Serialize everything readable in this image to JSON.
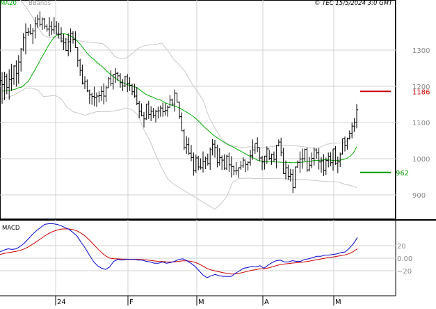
{
  "header": {
    "ma_label": "MA20",
    "bb_label": "BBands",
    "copyright": "© TEC 15/5/2024 3:0 GMT"
  },
  "macd_panel": {
    "label": "MACD"
  },
  "chart_data": {
    "type": "ohlc",
    "series": [
      {
        "name": "MA20",
        "color": "#00aa00"
      },
      {
        "name": "BBands",
        "color": "#cccccc"
      }
    ],
    "price_axis": {
      "ticks": [
        1300,
        1200,
        1100,
        1000,
        900
      ],
      "range": [
        860,
        1390
      ]
    },
    "macd_axis": {
      "ticks": [
        20,
        0,
        -20
      ],
      "range": [
        -48,
        55
      ]
    },
    "time_axis": {
      "labels": [
        "24",
        "F",
        "M",
        "A",
        "M"
      ]
    },
    "reference_levels": [
      {
        "value": 1186,
        "label": "1186",
        "color": "#cc0000"
      },
      {
        "value": 962,
        "label": "962",
        "color": "#009900"
      }
    ],
    "ohlc": [
      [
        1216,
        1239,
        1152,
        1205
      ],
      [
        1205,
        1240,
        1162,
        1228
      ],
      [
        1228,
        1235,
        1178,
        1197
      ],
      [
        1197,
        1247,
        1163,
        1219
      ],
      [
        1219,
        1262,
        1187,
        1222
      ],
      [
        1222,
        1259,
        1204,
        1256
      ],
      [
        1256,
        1272,
        1199,
        1236
      ],
      [
        1236,
        1286,
        1207,
        1267
      ],
      [
        1267,
        1306,
        1241,
        1303
      ],
      [
        1303,
        1347,
        1297,
        1334
      ],
      [
        1334,
        1374,
        1288,
        1349
      ],
      [
        1349,
        1362,
        1339,
        1350
      ],
      [
        1350,
        1372,
        1343,
        1345
      ],
      [
        1345,
        1361,
        1317,
        1353
      ],
      [
        1353,
        1392,
        1332,
        1373
      ],
      [
        1373,
        1398,
        1362,
        1386
      ],
      [
        1386,
        1407,
        1364,
        1371
      ],
      [
        1371,
        1390,
        1356,
        1386
      ],
      [
        1386,
        1389,
        1358,
        1366
      ],
      [
        1366,
        1371,
        1351,
        1358
      ],
      [
        1358,
        1391,
        1338,
        1366
      ],
      [
        1366,
        1380,
        1342,
        1356
      ],
      [
        1356,
        1391,
        1345,
        1366
      ],
      [
        1366,
        1380,
        1343,
        1344
      ],
      [
        1344,
        1375,
        1332,
        1344
      ],
      [
        1344,
        1363,
        1321,
        1325
      ],
      [
        1325,
        1345,
        1300,
        1320
      ],
      [
        1320,
        1334,
        1297,
        1299
      ],
      [
        1299,
        1346,
        1283,
        1323
      ],
      [
        1323,
        1360,
        1294,
        1346
      ],
      [
        1346,
        1353,
        1318,
        1330
      ],
      [
        1330,
        1352,
        1306,
        1307
      ],
      [
        1307,
        1308,
        1254,
        1272
      ],
      [
        1272,
        1276,
        1229,
        1244
      ],
      [
        1244,
        1260,
        1205,
        1209
      ],
      [
        1209,
        1228,
        1192,
        1214
      ],
      [
        1214,
        1219,
        1184,
        1187
      ],
      [
        1187,
        1191,
        1151,
        1177
      ],
      [
        1177,
        1182,
        1149,
        1172
      ],
      [
        1172,
        1199,
        1145,
        1169
      ],
      [
        1169,
        1183,
        1143,
        1173
      ],
      [
        1173,
        1186,
        1155,
        1174
      ],
      [
        1174,
        1200,
        1160,
        1186
      ],
      [
        1186,
        1208,
        1150,
        1173
      ],
      [
        1173,
        1202,
        1157,
        1196
      ],
      [
        1196,
        1226,
        1195,
        1221
      ],
      [
        1221,
        1244,
        1201,
        1208
      ],
      [
        1208,
        1234,
        1191,
        1232
      ],
      [
        1232,
        1250,
        1209,
        1236
      ],
      [
        1236,
        1240,
        1215,
        1229
      ],
      [
        1229,
        1236,
        1196,
        1210
      ],
      [
        1210,
        1220,
        1187,
        1201
      ],
      [
        1201,
        1229,
        1198,
        1226
      ],
      [
        1226,
        1234,
        1184,
        1208
      ],
      [
        1208,
        1225,
        1187,
        1203
      ],
      [
        1203,
        1207,
        1175,
        1185
      ],
      [
        1185,
        1207,
        1168,
        1173
      ],
      [
        1173,
        1198,
        1148,
        1153
      ],
      [
        1153,
        1160,
        1112,
        1131
      ],
      [
        1131,
        1153,
        1117,
        1119
      ],
      [
        1119,
        1129,
        1086,
        1110
      ],
      [
        1110,
        1152,
        1107,
        1151
      ],
      [
        1151,
        1160,
        1110,
        1122
      ],
      [
        1122,
        1145,
        1104,
        1131
      ],
      [
        1131,
        1140,
        1112,
        1119
      ],
      [
        1119,
        1135,
        1100,
        1131
      ],
      [
        1131,
        1144,
        1111,
        1132
      ],
      [
        1132,
        1147,
        1116,
        1140
      ],
      [
        1140,
        1155,
        1116,
        1130
      ],
      [
        1130,
        1153,
        1119,
        1133
      ],
      [
        1133,
        1147,
        1116,
        1142
      ],
      [
        1142,
        1176,
        1142,
        1162
      ],
      [
        1162,
        1166,
        1146,
        1151
      ],
      [
        1151,
        1191,
        1130,
        1181
      ],
      [
        1181,
        1181,
        1155,
        1156
      ],
      [
        1156,
        1158,
        1110,
        1116
      ],
      [
        1116,
        1128,
        1077,
        1077
      ],
      [
        1077,
        1082,
        1024,
        1031
      ],
      [
        1031,
        1062,
        1013,
        1039
      ],
      [
        1039,
        1058,
        1010,
        1015
      ],
      [
        1015,
        1038,
        993,
        1003
      ],
      [
        1003,
        1017,
        953,
        968
      ],
      [
        968,
        1011,
        961,
        1002
      ],
      [
        1002,
        1008,
        968,
        977
      ],
      [
        977,
        1001,
        970,
        975
      ],
      [
        975,
        1020,
        962,
        992
      ],
      [
        992,
        1006,
        971,
        1000
      ],
      [
        1000,
        1014,
        981,
        987
      ],
      [
        987,
        1031,
        969,
        1025
      ],
      [
        1025,
        1054,
        1009,
        1040
      ],
      [
        1040,
        1052,
        1003,
        1031
      ],
      [
        1031,
        1039,
        976,
        989
      ],
      [
        989,
        1029,
        981,
        1003
      ],
      [
        1003,
        1009,
        969,
        996
      ],
      [
        996,
        1012,
        969,
        974
      ],
      [
        974,
        1011,
        969,
        1007
      ],
      [
        1007,
        1017,
        963,
        983
      ],
      [
        983,
        1007,
        948,
        978
      ],
      [
        978,
        981,
        954,
        966
      ],
      [
        966,
        991,
        955,
        967
      ],
      [
        967,
        976,
        947,
        975
      ],
      [
        975,
        994,
        969,
        980
      ],
      [
        980,
        1004,
        975,
        996
      ],
      [
        996,
        993,
        963,
        984
      ],
      [
        984,
        993,
        967,
        990
      ],
      [
        990,
        1024,
        981,
        1008
      ],
      [
        1008,
        1053,
        997,
        1024
      ],
      [
        1024,
        1042,
        1013,
        1042
      ],
      [
        1042,
        1059,
        1018,
        1031
      ],
      [
        1031,
        1030,
        993,
        1002
      ],
      [
        1002,
        1008,
        968,
        991
      ],
      [
        991,
        1008,
        970,
        1007
      ],
      [
        1007,
        1034,
        986,
        1027
      ],
      [
        1027,
        1024,
        996,
        1001
      ],
      [
        1001,
        1014,
        983,
        1012
      ],
      [
        1012,
        1020,
        992,
        998
      ],
      [
        998,
        1038,
        973,
        1037
      ],
      [
        1037,
        1053,
        1034,
        1046
      ],
      [
        1046,
        1058,
        1007,
        1018
      ],
      [
        1018,
        1030,
        958,
        959
      ],
      [
        959,
        995,
        943,
        975
      ],
      [
        975,
        983,
        941,
        951
      ],
      [
        951,
        972,
        937,
        957
      ],
      [
        957,
        971,
        905,
        920
      ],
      [
        920,
        978,
        918,
        977
      ],
      [
        977,
        995,
        975,
        990
      ],
      [
        990,
        1020,
        961,
        999
      ],
      [
        999,
        1028,
        972,
        1000
      ],
      [
        1000,
        1028,
        993,
        1026
      ],
      [
        1026,
        1031,
        963,
        969
      ],
      [
        969,
        1005,
        965,
        982
      ],
      [
        982,
        1017,
        974,
        1001
      ],
      [
        1001,
        1031,
        981,
        1024
      ],
      [
        1024,
        1028,
        1000,
        1016
      ],
      [
        1016,
        1029,
        970,
        991
      ],
      [
        991,
        1004,
        961,
        994
      ],
      [
        994,
        1013,
        952,
        968
      ],
      [
        968,
        1003,
        955,
        995
      ],
      [
        995,
        1017,
        976,
        1006
      ],
      [
        1006,
        1018,
        979,
        989
      ],
      [
        989,
        1027,
        967,
        1027
      ],
      [
        1027,
        1035,
        983,
        986
      ],
      [
        986,
        1006,
        960,
        991
      ],
      [
        991,
        1017,
        977,
        1013
      ],
      [
        1013,
        1056,
        1011,
        1055
      ],
      [
        1055,
        1061,
        1020,
        1036
      ],
      [
        1036,
        1058,
        1025,
        1056
      ],
      [
        1056,
        1078,
        1053,
        1070
      ],
      [
        1070,
        1100,
        1056,
        1090
      ],
      [
        1090,
        1112,
        1074,
        1101
      ],
      [
        1101,
        1151,
        1084,
        1135
      ]
    ],
    "ma20": [
      1187,
      1187,
      1189,
      1190,
      1192,
      1196,
      1198,
      1206,
      1214,
      1230,
      1245,
      1262,
      1279,
      1294,
      1311,
      1325,
      1337,
      1342,
      1345,
      1345,
      1343,
      1338,
      1333,
      1324,
      1314,
      1302,
      1290,
      1281,
      1274,
      1265,
      1258,
      1250,
      1241,
      1233,
      1226,
      1219,
      1213,
      1209,
      1205,
      1202,
      1200,
      1196,
      1190,
      1183,
      1177,
      1173,
      1170,
      1165,
      1163,
      1158,
      1153,
      1150,
      1147,
      1144,
      1140,
      1135,
      1130,
      1124,
      1118,
      1111,
      1102,
      1093,
      1084,
      1076,
      1068,
      1061,
      1055,
      1049,
      1043,
      1038,
      1034,
      1029,
      1024,
      1019,
      1014,
      1009,
      1004,
      1000,
      995,
      993,
      992,
      991,
      992,
      991,
      991,
      990,
      990,
      990,
      989,
      989,
      989,
      990,
      991,
      992,
      993,
      995,
      995,
      996,
      997,
      997,
      996,
      995,
      995,
      996,
      998,
      1001,
      1007,
      1016,
      1033
    ],
    "bb_upper": [
      1450,
      1452,
      1455,
      1440,
      1420,
      1395,
      1365,
      1340,
      1335,
      1335,
      1332,
      1330,
      1328,
      1326,
      1323,
      1322,
      1320,
      1318,
      1305,
      1283,
      1276,
      1278,
      1290,
      1305,
      1312,
      1315,
      1315,
      1320,
      1300,
      1275,
      1259,
      1240,
      1210,
      1187,
      1162,
      1115,
      1085,
      1058,
      1042,
      1035,
      1032,
      1031,
      1033,
      1030,
      1030,
      1032,
      1034,
      1036,
      1037,
      1036,
      1035,
      1033,
      1030,
      1028,
      1033,
      1040,
      1043,
      1043,
      1045,
      1060,
      1095
    ],
    "bb_lower": [
      1166,
      1170,
      1176,
      1185,
      1195,
      1195,
      1190,
      1172,
      1173,
      1175,
      1165,
      1142,
      1130,
      1125,
      1120,
      1125,
      1130,
      1130,
      1130,
      1132,
      1135,
      1140,
      1135,
      1120,
      1080,
      1050,
      1010,
      975,
      945,
      930,
      920,
      910,
      900,
      890,
      880,
      870,
      860,
      875,
      895,
      935,
      945,
      946,
      946,
      945,
      945,
      945,
      946,
      945,
      944,
      943,
      942,
      943,
      941,
      940,
      938,
      937,
      936,
      935,
      929,
      926,
      920
    ],
    "macd": [
      10,
      13,
      15,
      14,
      15,
      19,
      24,
      31,
      38,
      44,
      49,
      54,
      55,
      55,
      54,
      52,
      49,
      46,
      41,
      35,
      25,
      16,
      5,
      -5,
      -12,
      -16,
      -18,
      -14,
      -5,
      -2,
      -3,
      -2,
      -2,
      -2,
      -3,
      -3,
      -5,
      -6,
      -8,
      -8,
      -6,
      -8,
      -7,
      -5,
      -2,
      -1,
      -4,
      -8,
      -13,
      -20,
      -27,
      -31,
      -28,
      -26,
      -28,
      -29,
      -29,
      -29,
      -24,
      -20,
      -16,
      -15,
      -13,
      -14,
      -12,
      -16,
      -11,
      -7,
      -4,
      -3,
      -6,
      -6,
      -4,
      -5,
      -5,
      -2,
      -1,
      1,
      3,
      3,
      5,
      5,
      6,
      7,
      9,
      10,
      16,
      23,
      33
    ]
  }
}
